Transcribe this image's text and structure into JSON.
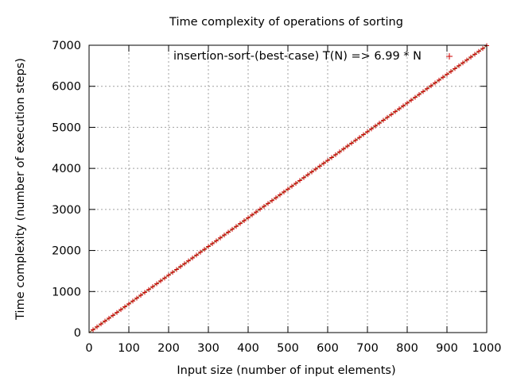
{
  "chart_data": {
    "type": "scatter",
    "title": "Time complexity of operations of sorting",
    "xlabel": "Input size (number of input elements)",
    "ylabel": "Time complexity (number of execution steps)",
    "xlim": [
      0,
      1000
    ],
    "ylim": [
      0,
      7000
    ],
    "x_ticks": [
      "0",
      "100",
      "200",
      "300",
      "400",
      "500",
      "600",
      "700",
      "800",
      "900",
      "1000"
    ],
    "y_ticks": [
      "0",
      "1000",
      "2000",
      "3000",
      "4000",
      "5000",
      "6000",
      "7000"
    ],
    "grid": true,
    "legend_position": "top-right",
    "series": [
      {
        "name": "insertion-sort-(best-case) T(N) => 6.99 * N",
        "color": "#cc0000",
        "marker": "plus",
        "slope": 6.99,
        "x_start": 10,
        "x_end": 1000,
        "x_step": 10
      }
    ],
    "fit_line": {
      "color": "#8b4513",
      "slope": 6.99
    }
  }
}
